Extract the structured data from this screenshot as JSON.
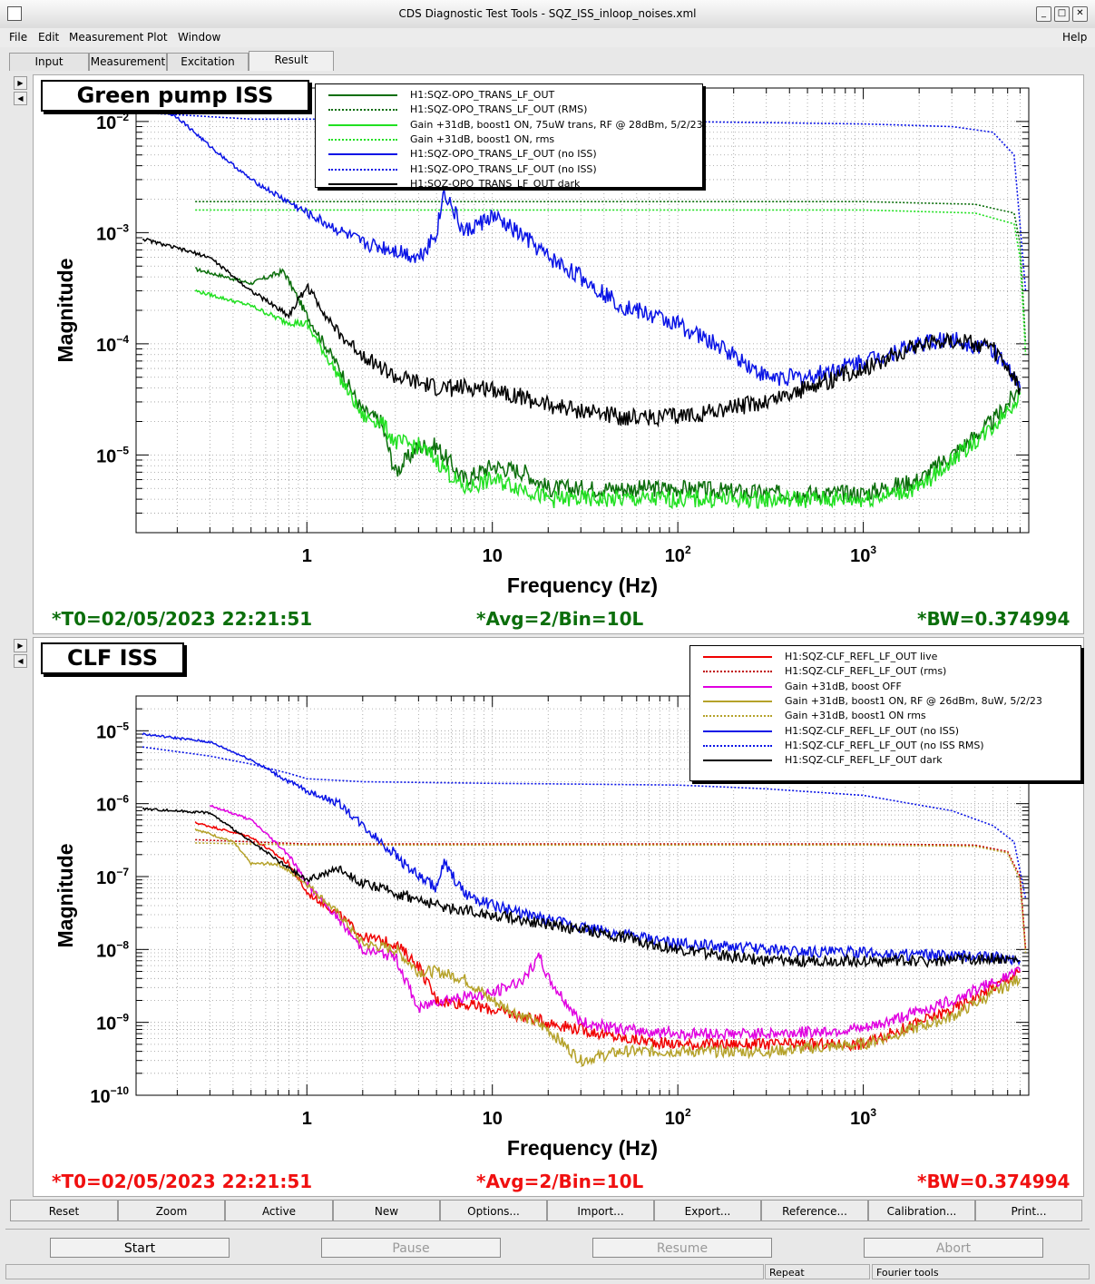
{
  "window": {
    "title": "CDS Diagnostic Test Tools - SQZ_ISS_inloop_noises.xml"
  },
  "menu": {
    "file": "File",
    "edit": "Edit",
    "measurement": "Measurement",
    "plot": "Plot",
    "window": "Window",
    "help": "Help"
  },
  "tabs": {
    "input": "Input",
    "measurement": "Measurement",
    "excitation": "Excitation",
    "result": "Result"
  },
  "colors": {
    "dkgreen": "#0b6e0b",
    "green": "#22e022",
    "blue": "#0a14e6",
    "black": "#000000",
    "red": "#f00000",
    "magenta": "#e000e0",
    "olive": "#b5a22a",
    "footer_top": "#0b6e0b",
    "footer_bottom": "#f01010"
  },
  "plots": {
    "top": {
      "title": "Green pump ISS",
      "legend": [
        {
          "label": "H1:SQZ-OPO_TRANS_LF_OUT",
          "color": "#0b6e0b",
          "dash": false
        },
        {
          "label": "H1:SQZ-OPO_TRANS_LF_OUT (RMS)",
          "color": "#0b6e0b",
          "dash": true
        },
        {
          "label": "Gain +31dB, boost1 ON, 75uW trans, RF @ 28dBm, 5/2/23",
          "color": "#22e022",
          "dash": false
        },
        {
          "label": "Gain +31dB, boost1 ON, rms",
          "color": "#22e022",
          "dash": true
        },
        {
          "label": "H1:SQZ-OPO_TRANS_LF_OUT (no ISS)",
          "color": "#0a14e6",
          "dash": false
        },
        {
          "label": "H1:SQZ-OPO_TRANS_LF_OUT (no ISS)",
          "color": "#0a14e6",
          "dash": true
        },
        {
          "label": "H1:SQZ-OPO_TRANS_LF_OUT dark",
          "color": "#000000",
          "dash": false
        }
      ],
      "footer": {
        "t0": "*T0=02/05/2023 22:21:51",
        "avg": "*Avg=2/Bin=10L",
        "bw": "*BW=0.374994"
      }
    },
    "bottom": {
      "title": "CLF ISS",
      "legend": [
        {
          "label": "H1:SQZ-CLF_REFL_LF_OUT live",
          "color": "#f00000",
          "dash": false
        },
        {
          "label": "H1:SQZ-CLF_REFL_LF_OUT (rms)",
          "color": "#c00000",
          "dash": true
        },
        {
          "label": "Gain +31dB, boost OFF",
          "color": "#e000e0",
          "dash": false
        },
        {
          "label": "Gain +31dB, boost1 ON, RF @ 26dBm, 8uW, 5/2/23",
          "color": "#b5a22a",
          "dash": false
        },
        {
          "label": "Gain +31dB, boost1 ON rms",
          "color": "#b5a22a",
          "dash": true
        },
        {
          "label": "H1:SQZ-CLF_REFL_LF_OUT (no ISS)",
          "color": "#0a14e6",
          "dash": false
        },
        {
          "label": "H1:SQZ-CLF_REFL_LF_OUT (no ISS RMS)",
          "color": "#0a14e6",
          "dash": true
        },
        {
          "label": "H1:SQZ-CLF_REFL_LF_OUT dark",
          "color": "#000000",
          "dash": false
        }
      ],
      "footer": {
        "t0": "*T0=02/05/2023 22:21:51",
        "avg": "*Avg=2/Bin=10L",
        "bw": "*BW=0.374994"
      }
    }
  },
  "chart_data": [
    {
      "type": "line",
      "xlabel": "Frequency (Hz)",
      "ylabel": "Magnitude",
      "xscale": "log",
      "yscale": "log",
      "xlim": [
        0.12,
        7800
      ],
      "ylim": [
        2e-06,
        0.02
      ],
      "xticks": [
        "1",
        "10",
        "10^2",
        "10^3"
      ],
      "yticks": [
        "10^-2",
        "10^-3",
        "10^-4",
        "10^-5"
      ],
      "grid": true,
      "series": [
        {
          "name": "H1:SQZ-OPO_TRANS_LF_OUT",
          "color": "#0b6e0b",
          "dash": false,
          "x": [
            0.25,
            0.5,
            0.75,
            1,
            1.5,
            2,
            2.5,
            3,
            4,
            5,
            7,
            10,
            15,
            20,
            50,
            100,
            300,
            1000,
            2000,
            3000,
            5000,
            7000
          ],
          "y": [
            0.00047,
            0.00035,
            0.00045,
            0.00018,
            6e-05,
            2.5e-05,
            2e-05,
            7e-06,
            1.2e-05,
            1.2e-05,
            6e-06,
            8e-06,
            7e-06,
            5e-06,
            5e-06,
            5e-06,
            4.5e-06,
            4.5e-06,
            6e-06,
            1e-05,
            2e-05,
            4e-05
          ]
        },
        {
          "name": "H1:SQZ-OPO_TRANS_LF_OUT (RMS)",
          "color": "#0b6e0b",
          "dash": true,
          "x": [
            0.25,
            1,
            10,
            100,
            1000,
            4000,
            6500,
            7000,
            7500
          ],
          "y": [
            0.0019,
            0.0019,
            0.0019,
            0.0019,
            0.0019,
            0.0018,
            0.0015,
            0.0008,
            0.0001
          ]
        },
        {
          "name": "Gain +31dB, boost1 ON, 75uW trans, RF @ 28dBm, 5/2/23",
          "color": "#22e022",
          "dash": false,
          "x": [
            0.25,
            0.5,
            0.75,
            1,
            1.5,
            2,
            2.5,
            3,
            4,
            5,
            7,
            10,
            15,
            20,
            50,
            100,
            300,
            1000,
            2000,
            3000,
            5000,
            7000
          ],
          "y": [
            0.0003,
            0.00022,
            0.00016,
            0.00015,
            5e-05,
            2.2e-05,
            2e-05,
            1.3e-05,
            1.2e-05,
            9e-06,
            5e-06,
            6e-06,
            5e-06,
            4e-06,
            4e-06,
            4e-06,
            4e-06,
            4e-06,
            5e-06,
            9e-06,
            1.8e-05,
            3.5e-05
          ]
        },
        {
          "name": "Gain +31dB, boost1 ON, rms",
          "color": "#22e022",
          "dash": true,
          "x": [
            0.25,
            1,
            10,
            100,
            1000,
            4000,
            6500,
            7000,
            7500
          ],
          "y": [
            0.0016,
            0.0016,
            0.0016,
            0.0016,
            0.0016,
            0.0015,
            0.0012,
            0.0006,
            8e-05
          ]
        },
        {
          "name": "H1:SQZ-OPO_TRANS_LF_OUT (no ISS)",
          "color": "#0a14e6",
          "dash": false,
          "x": [
            0.13,
            0.2,
            0.3,
            0.5,
            1,
            2,
            3,
            4,
            5,
            5.5,
            7,
            10,
            15,
            20,
            30,
            50,
            100,
            200,
            300,
            500,
            1000,
            2000,
            3000,
            5000,
            7000
          ],
          "y": [
            0.015,
            0.011,
            0.006,
            0.003,
            0.0015,
            0.0008,
            0.0007,
            0.0006,
            0.001,
            0.0024,
            0.001,
            0.0014,
            0.0009,
            0.0006,
            0.0004,
            0.00022,
            0.00015,
            8e-05,
            5e-05,
            5e-05,
            7e-05,
            0.0001,
            0.00011,
            9e-05,
            4e-05
          ]
        },
        {
          "name": "H1:SQZ-OPO_TRANS_LF_OUT (no ISS)",
          "color": "#0a14e6",
          "dash": true,
          "x": [
            0.13,
            0.5,
            1,
            10,
            100,
            1000,
            3000,
            5000,
            6500,
            7500
          ],
          "y": [
            0.012,
            0.0105,
            0.0105,
            0.0105,
            0.01,
            0.0095,
            0.009,
            0.008,
            0.005,
            0.0003
          ]
        },
        {
          "name": "H1:SQZ-OPO_TRANS_LF_OUT dark",
          "color": "#000000",
          "dash": false,
          "x": [
            0.13,
            0.3,
            0.5,
            0.8,
            1,
            1.5,
            2,
            3,
            5,
            10,
            20,
            50,
            100,
            300,
            1000,
            2000,
            3000,
            5000,
            7000
          ],
          "y": [
            0.00088,
            0.0006,
            0.0003,
            0.00018,
            0.00033,
            0.00012,
            8e-05,
            5e-05,
            4e-05,
            4e-05,
            2.8e-05,
            2.2e-05,
            2.2e-05,
            3e-05,
            6e-05,
            0.0001,
            0.00011,
            9e-05,
            4e-05
          ]
        }
      ]
    },
    {
      "type": "line",
      "xlabel": "Frequency (Hz)",
      "ylabel": "Magnitude",
      "xscale": "log",
      "yscale": "log",
      "xlim": [
        0.12,
        7800
      ],
      "ylim": [
        1e-10,
        3e-05
      ],
      "xticks": [
        "1",
        "10",
        "10^2",
        "10^3"
      ],
      "yticks": [
        "10^-5",
        "10^-6",
        "10^-7",
        "10^-8",
        "10^-9",
        "10^-10"
      ],
      "grid": true,
      "series": [
        {
          "name": "H1:SQZ-CLF_REFL_LF_OUT live",
          "color": "#f00000",
          "dash": false,
          "x": [
            0.25,
            0.5,
            0.8,
            1,
            1.5,
            2,
            3,
            4,
            5,
            7,
            10,
            20,
            50,
            100,
            300,
            1000,
            3000,
            5000,
            7000
          ],
          "y": [
            5.5e-07,
            3.5e-07,
            1.5e-07,
            6e-08,
            3e-08,
            1.5e-08,
            1.2e-08,
            6e-09,
            2e-09,
            1.8e-09,
            1.5e-09,
            1e-09,
            6e-10,
            5e-10,
            5e-10,
            5e-10,
            1.5e-09,
            3e-09,
            5e-09
          ]
        },
        {
          "name": "H1:SQZ-CLF_REFL_LF_OUT (rms)",
          "color": "#c00000",
          "dash": true,
          "x": [
            0.25,
            1,
            10,
            100,
            1000,
            4000,
            6000,
            7000,
            7500
          ],
          "y": [
            3.2e-07,
            2.8e-07,
            2.8e-07,
            2.8e-07,
            2.8e-07,
            2.7e-07,
            2.2e-07,
            1e-07,
            1e-08
          ]
        },
        {
          "name": "Gain +31dB, boost OFF",
          "color": "#e000e0",
          "dash": false,
          "x": [
            0.3,
            0.5,
            0.8,
            1,
            1.5,
            2,
            3,
            4,
            5,
            10,
            15,
            18,
            20,
            30,
            50,
            100,
            300,
            1000,
            3000,
            5000,
            7000
          ],
          "y": [
            9.5e-07,
            6e-07,
            2e-07,
            8e-08,
            2.5e-08,
            1e-08,
            8e-09,
            1.5e-09,
            2e-09,
            2.5e-09,
            4e-09,
            8e-09,
            4e-09,
            1e-09,
            8e-10,
            7e-10,
            7e-10,
            8e-10,
            2e-09,
            3.5e-09,
            5e-09
          ]
        },
        {
          "name": "Gain +31dB, boost1 ON, RF @ 26dBm, 8uW, 5/2/23",
          "color": "#b5a22a",
          "dash": false,
          "x": [
            0.25,
            0.4,
            0.5,
            0.7,
            1,
            1.5,
            2,
            3,
            4,
            5,
            7,
            10,
            20,
            30,
            50,
            100,
            300,
            1000,
            3000,
            5000,
            7000
          ],
          "y": [
            4.5e-07,
            3e-07,
            1.5e-07,
            1.5e-07,
            8e-08,
            3e-08,
            1.2e-08,
            1e-08,
            5e-09,
            5e-09,
            4e-09,
            2e-09,
            8e-10,
            3e-10,
            4e-10,
            4e-10,
            4e-10,
            5e-10,
            1.2e-09,
            2.5e-09,
            4e-09
          ]
        },
        {
          "name": "Gain +31dB, boost1 ON rms",
          "color": "#b5a22a",
          "dash": true,
          "x": [
            0.25,
            1,
            10,
            100,
            1000,
            4000,
            6000,
            7000,
            7500
          ],
          "y": [
            2.9e-07,
            2.7e-07,
            2.7e-07,
            2.7e-07,
            2.7e-07,
            2.6e-07,
            2.1e-07,
            9e-08,
            9e-09
          ]
        },
        {
          "name": "H1:SQZ-CLF_REFL_LF_OUT (no ISS)",
          "color": "#0a14e6",
          "dash": false,
          "x": [
            0.13,
            0.3,
            0.5,
            0.8,
            1,
            1.5,
            2,
            3,
            4,
            5,
            5.5,
            7,
            10,
            20,
            50,
            100,
            300,
            1000,
            3000,
            5000,
            7000
          ],
          "y": [
            9e-06,
            7e-06,
            4e-06,
            2e-06,
            1.5e-06,
            1e-06,
            5e-07,
            2e-07,
            1e-07,
            7e-08,
            1.5e-07,
            6e-08,
            4e-08,
            2.5e-08,
            1.6e-08,
            1.2e-08,
            1e-08,
            9e-09,
            8e-09,
            8e-09,
            7e-09
          ]
        },
        {
          "name": "H1:SQZ-CLF_REFL_LF_OUT (no ISS RMS)",
          "color": "#0a14e6",
          "dash": true,
          "x": [
            0.13,
            0.3,
            0.5,
            0.8,
            1,
            2,
            10,
            100,
            300,
            1000,
            3000,
            5000,
            6500,
            7500
          ],
          "y": [
            6e-06,
            4.5e-06,
            3.5e-06,
            2.6e-06,
            2.2e-06,
            2e-06,
            1.9e-06,
            1.8e-06,
            1.6e-06,
            1.3e-06,
            8e-07,
            5e-07,
            3e-07,
            5e-08
          ]
        },
        {
          "name": "H1:SQZ-CLF_REFL_LF_OUT dark",
          "color": "#000000",
          "dash": false,
          "x": [
            0.13,
            0.3,
            0.5,
            0.8,
            1,
            1.5,
            2,
            3,
            5,
            10,
            20,
            50,
            100,
            300,
            1000,
            3000,
            5000,
            7000
          ],
          "y": [
            8.5e-07,
            7.5e-07,
            3e-07,
            1.3e-07,
            9e-08,
            1.3e-07,
            8e-08,
            6e-08,
            4e-08,
            3e-08,
            2.2e-08,
            1.5e-08,
            1e-08,
            7e-09,
            7e-09,
            7e-09,
            7.5e-09,
            7e-09
          ]
        }
      ]
    }
  ],
  "buttons": {
    "reset": "Reset",
    "zoom": "Zoom",
    "active": "Active",
    "new": "New",
    "options": "Options...",
    "import": "Import...",
    "export": "Export...",
    "reference": "Reference...",
    "calibration": "Calibration...",
    "print": "Print..."
  },
  "controls": {
    "start": "Start",
    "pause": "Pause",
    "resume": "Resume",
    "abort": "Abort"
  },
  "status": {
    "repeat": "Repeat",
    "fourier": "Fourier tools"
  }
}
